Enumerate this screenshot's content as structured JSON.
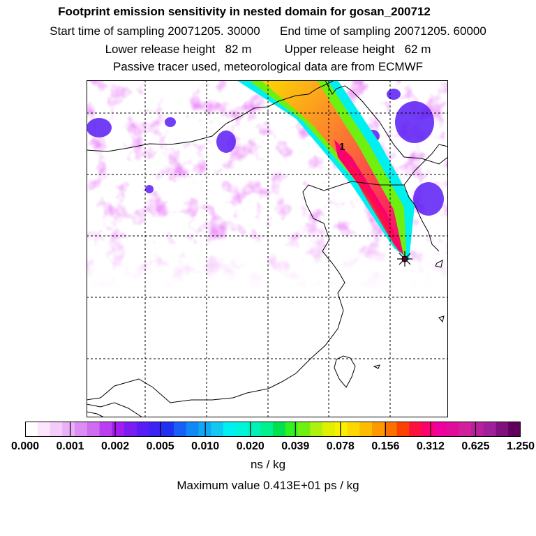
{
  "header": {
    "title": "Footprint emission sensitivity in nested domain for gosan_200712",
    "start_sampling": "Start time of sampling 20071205. 30000",
    "end_sampling": "End time of sampling 20071205. 60000",
    "lower_release": "Lower release height   82 m",
    "upper_release": "Upper release height   62 m",
    "tracer_note": "Passive tracer used, meteorological data are from ECMWF"
  },
  "map": {
    "release_marker_label": "1",
    "plume_color": "#ff1493",
    "background_wash": "#d94cf0"
  },
  "colorbar": {
    "tick_labels": [
      "0.000",
      "0.001",
      "0.002",
      "0.005",
      "0.010",
      "0.020",
      "0.039",
      "0.078",
      "0.156",
      "0.312",
      "0.625",
      "1.250"
    ],
    "colors": [
      "#ffffff",
      "#fbe6fd",
      "#f4ccfa",
      "#eab0f7",
      "#dc8cf3",
      "#d06cf0",
      "#bb3ff0",
      "#a31cf0",
      "#7b1cf0",
      "#5a1cf5",
      "#3c22f5",
      "#2030f0",
      "#1860f5",
      "#1088f5",
      "#10a8f5",
      "#10c8f0",
      "#00f0f0",
      "#00f5d8",
      "#00f0b8",
      "#00f090",
      "#00e050",
      "#30f020",
      "#70f010",
      "#b0f010",
      "#e0f000",
      "#f8f000",
      "#fcd800",
      "#fcbc00",
      "#fc9800",
      "#fc7000",
      "#fc4000",
      "#fc1040",
      "#fc0070",
      "#f0009c",
      "#e00c9c",
      "#d0209c",
      "#b8209c",
      "#a0209c",
      "#80107c",
      "#60005c"
    ],
    "units": "ns / kg",
    "max_value": "Maximum value  0.413E+01 ps / kg"
  }
}
